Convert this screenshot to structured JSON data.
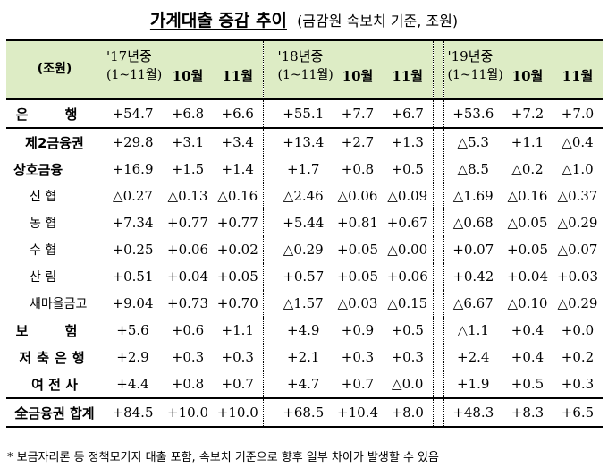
{
  "title": "가계대출 증감 추이",
  "subtitle": "(금감원 속보치 기준, 조원)",
  "header": {
    "unit": "(조원)",
    "groups": [
      {
        "year": "'17년중",
        "range": "(1~11월)",
        "m1": "10월",
        "m2": "11월"
      },
      {
        "year": "'18년중",
        "range": "(1~11월)",
        "m1": "10월",
        "m2": "11월"
      },
      {
        "year": "'19년중",
        "range": "(1~11월)",
        "m1": "10월",
        "m2": "11월"
      }
    ]
  },
  "rows": [
    {
      "label": "은 행",
      "v": [
        "+54.7",
        "+6.8",
        "+6.6",
        "+55.1",
        "+7.7",
        "+6.7",
        "+53.6",
        "+7.2",
        "+7.0"
      ]
    },
    {
      "label": "제2금융권",
      "v": [
        "+29.8",
        "+3.1",
        "+3.4",
        "+13.4",
        "+2.7",
        "+1.3",
        "△5.3",
        "+1.1",
        "△0.4"
      ]
    },
    {
      "label": "상호금융",
      "v": [
        "+16.9",
        "+1.5",
        "+1.4",
        "+1.7",
        "+0.8",
        "+0.5",
        "△8.5",
        "△0.2",
        "△1.0"
      ]
    },
    {
      "label": "신 협",
      "v": [
        "△0.27",
        "△0.13",
        "△0.16",
        "△2.46",
        "△0.06",
        "△0.09",
        "△1.69",
        "△0.16",
        "△0.37"
      ]
    },
    {
      "label": "농 협",
      "v": [
        "+7.34",
        "+0.77",
        "+0.77",
        "+5.44",
        "+0.81",
        "+0.67",
        "△0.68",
        "△0.05",
        "△0.29"
      ]
    },
    {
      "label": "수 협",
      "v": [
        "+0.25",
        "+0.06",
        "+0.02",
        "△0.29",
        "+0.05",
        "△0.00",
        "+0.07",
        "+0.05",
        "△0.07"
      ]
    },
    {
      "label": "산 림",
      "v": [
        "+0.51",
        "+0.04",
        "+0.05",
        "+0.57",
        "+0.05",
        "+0.06",
        "+0.42",
        "+0.04",
        "+0.03"
      ]
    },
    {
      "label": "새마을금고",
      "v": [
        "+9.04",
        "+0.73",
        "+0.70",
        "△1.57",
        "△0.03",
        "△0.15",
        "△6.67",
        "△0.10",
        "△0.29"
      ]
    },
    {
      "label": "보 험",
      "v": [
        "+5.6",
        "+0.6",
        "+1.1",
        "+4.9",
        "+0.9",
        "+0.5",
        "△1.1",
        "+0.4",
        "+0.0"
      ]
    },
    {
      "label": "저축은행",
      "v": [
        "+2.9",
        "+0.3",
        "+0.3",
        "+2.1",
        "+0.3",
        "+0.3",
        "+2.4",
        "+0.4",
        "+0.2"
      ]
    },
    {
      "label": "여 전 사",
      "v": [
        "+4.4",
        "+0.8",
        "+0.7",
        "+4.7",
        "+0.7",
        "△0.0",
        "+1.9",
        "+0.5",
        "+0.3"
      ]
    },
    {
      "label": "全금융권 합계",
      "v": [
        "+84.5",
        "+10.0",
        "+10.0",
        "+68.5",
        "+10.4",
        "+8.0",
        "+48.3",
        "+8.3",
        "+6.5"
      ]
    }
  ],
  "note": "* 보금자리론 등 정책모기지 대출 포함, 속보치 기준으로 향후 일부 차이가 발생할 수 있음"
}
